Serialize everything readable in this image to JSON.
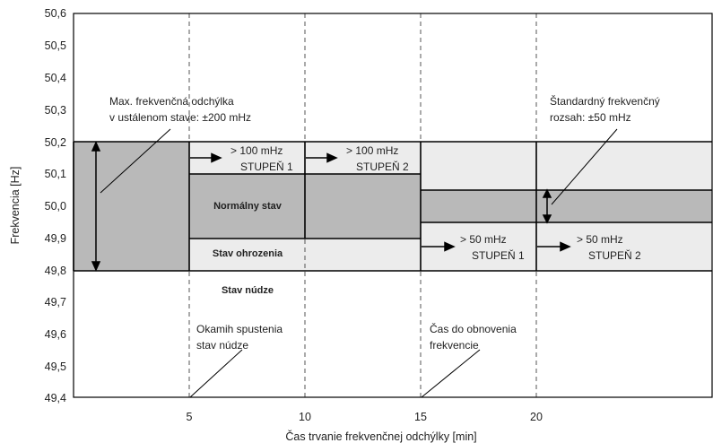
{
  "chart_data": {
    "type": "diagram",
    "xlabel": "Čas trvanie frekvenčnej odchýlky [min]",
    "ylabel": "Frekvencia [Hz]",
    "xlim": [
      0,
      28
    ],
    "ylim": [
      49.4,
      50.6
    ],
    "x_ticks": [
      "5",
      "10",
      "15",
      "20"
    ],
    "x_tick_values": [
      5,
      10,
      15,
      20
    ],
    "y_ticks": [
      "50,6",
      "50,5",
      "50,4",
      "50,3",
      "50,2",
      "50,1",
      "50,0",
      "49,9",
      "49,8",
      "49,7",
      "49,6",
      "49,5",
      "49,4"
    ],
    "y_tick_values": [
      50.6,
      50.5,
      50.4,
      50.3,
      50.2,
      50.1,
      50.0,
      49.9,
      49.8,
      49.7,
      49.6,
      49.5,
      49.4
    ],
    "regions": {
      "max_deviation_band": [
        49.8,
        50.2
      ],
      "normal_state_0_5": [
        49.8,
        50.2
      ],
      "normal_state_5_15": [
        49.9,
        50.1
      ],
      "normal_state_15_end": [
        49.95,
        50.05
      ]
    },
    "colors": {
      "dark_fill": "#b9b9b9",
      "light_fill": "#ececec",
      "line": "#000000"
    }
  },
  "labels": {
    "max_dev": [
      "Max. frekvenčná odchýlka",
      "v ustálenom stave: ±200 mHz"
    ],
    "std_range": [
      "Štandardný frekvenčný",
      "rozsah: ±50 mHz"
    ],
    "normal": "Normálny stav",
    "alert": "Stav ohrozenia",
    "emergency": "Stav núdze",
    "start": [
      "Okamih spustenia",
      "stav núdze"
    ],
    "restore": [
      "Čas do obnovenia",
      "frekvencie"
    ],
    "s1_top": [
      "> 100 mHz",
      "STUPEŇ 1"
    ],
    "s2_top": [
      "> 100 mHz",
      "STUPEŇ 2"
    ],
    "s1_bot": [
      "> 50 mHz",
      "STUPEŇ 1"
    ],
    "s2_bot": [
      "> 50 mHz",
      "STUPEŇ 2"
    ]
  }
}
